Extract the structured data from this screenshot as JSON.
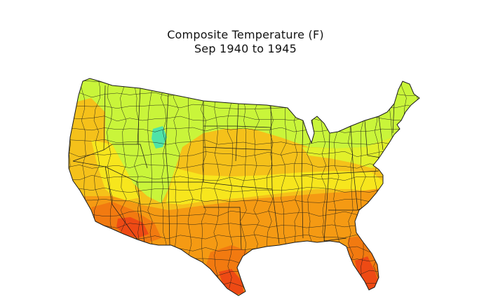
{
  "title": {
    "line1": "Composite Temperature (F)",
    "line2": "Sep 1940 to 1945"
  },
  "map": {
    "region": "contiguous-united-states",
    "type": "choropleth-climate-divisions",
    "colors": {
      "lime": "#c9f53a",
      "yellow_green": "#e2f02a",
      "yellow": "#f7e61d",
      "amber": "#f5c11a",
      "orange": "#f59a13",
      "dark_orange": "#f27a10",
      "red_orange": "#ee4a14",
      "teal": "#4fe3a8",
      "border": "#1a1a1a"
    }
  }
}
